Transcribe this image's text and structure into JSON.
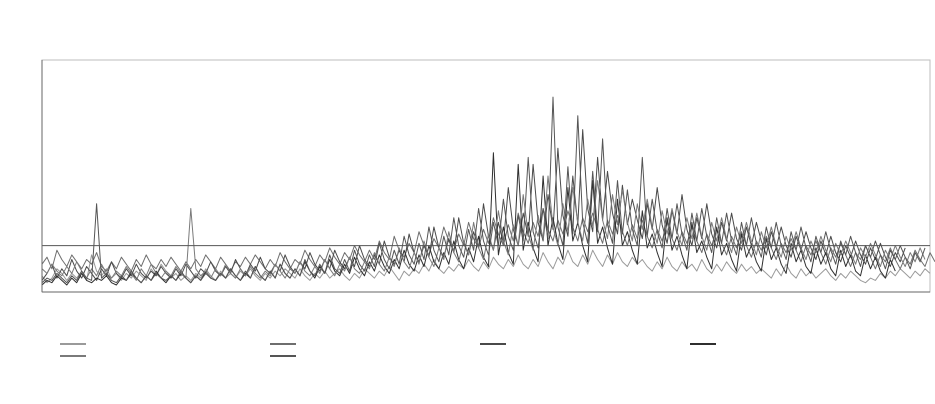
{
  "chart_data": {
    "type": "line",
    "title": "",
    "xlabel": "",
    "ylabel": "",
    "grid": true,
    "legend_position": "bottom",
    "x_count": 180,
    "ylim": [
      0,
      1
    ],
    "yticks": [],
    "xticks": [],
    "reference_line": 0.2,
    "series": [
      {
        "name": "",
        "color": "#9a9a9a",
        "values": [
          0.07,
          0.04,
          0.06,
          0.1,
          0.08,
          0.05,
          0.08,
          0.06,
          0.09,
          0.05,
          0.16,
          0.09,
          0.07,
          0.1,
          0.06,
          0.08,
          0.05,
          0.08,
          0.06,
          0.09,
          0.07,
          0.05,
          0.1,
          0.07,
          0.12,
          0.09,
          0.06,
          0.08,
          0.05,
          0.07,
          0.05,
          0.08,
          0.06,
          0.1,
          0.07,
          0.05,
          0.09,
          0.06,
          0.08,
          0.06,
          0.09,
          0.07,
          0.1,
          0.07,
          0.05,
          0.08,
          0.06,
          0.09,
          0.07,
          0.1,
          0.08,
          0.06,
          0.1,
          0.07,
          0.05,
          0.08,
          0.06,
          0.09,
          0.06,
          0.08,
          0.1,
          0.07,
          0.05,
          0.08,
          0.06,
          0.1,
          0.08,
          0.06,
          0.09,
          0.07,
          0.11,
          0.08,
          0.05,
          0.09,
          0.07,
          0.1,
          0.08,
          0.12,
          0.09,
          0.14,
          0.1,
          0.08,
          0.11,
          0.09,
          0.12,
          0.1,
          0.14,
          0.11,
          0.09,
          0.13,
          0.1,
          0.15,
          0.12,
          0.1,
          0.14,
          0.11,
          0.16,
          0.12,
          0.1,
          0.14,
          0.11,
          0.17,
          0.13,
          0.1,
          0.15,
          0.12,
          0.18,
          0.13,
          0.11,
          0.16,
          0.12,
          0.18,
          0.14,
          0.11,
          0.16,
          0.12,
          0.17,
          0.13,
          0.11,
          0.15,
          0.12,
          0.14,
          0.11,
          0.09,
          0.13,
          0.1,
          0.15,
          0.11,
          0.09,
          0.13,
          0.1,
          0.12,
          0.09,
          0.14,
          0.1,
          0.08,
          0.12,
          0.09,
          0.13,
          0.1,
          0.08,
          0.12,
          0.09,
          0.11,
          0.08,
          0.1,
          0.08,
          0.06,
          0.1,
          0.07,
          0.12,
          0.08,
          0.06,
          0.1,
          0.07,
          0.09,
          0.06,
          0.08,
          0.1,
          0.07,
          0.05,
          0.08,
          0.06,
          0.09,
          0.07,
          0.05,
          0.04,
          0.06,
          0.05,
          0.08,
          0.06,
          0.09,
          0.07,
          0.1,
          0.08,
          0.06,
          0.09,
          0.07,
          0.1,
          0.08
        ]
      },
      {
        "name": "",
        "color": "#6e6e6e",
        "values": [
          0.12,
          0.15,
          0.1,
          0.18,
          0.14,
          0.11,
          0.16,
          0.13,
          0.1,
          0.14,
          0.12,
          0.17,
          0.11,
          0.09,
          0.13,
          0.1,
          0.15,
          0.12,
          0.09,
          0.14,
          0.11,
          0.16,
          0.12,
          0.1,
          0.14,
          0.11,
          0.15,
          0.12,
          0.09,
          0.13,
          0.1,
          0.14,
          0.11,
          0.16,
          0.13,
          0.1,
          0.15,
          0.12,
          0.09,
          0.13,
          0.11,
          0.15,
          0.12,
          0.16,
          0.13,
          0.1,
          0.14,
          0.11,
          0.17,
          0.13,
          0.1,
          0.14,
          0.12,
          0.18,
          0.14,
          0.11,
          0.16,
          0.13,
          0.19,
          0.15,
          0.12,
          0.17,
          0.14,
          0.2,
          0.16,
          0.13,
          0.18,
          0.14,
          0.22,
          0.17,
          0.14,
          0.24,
          0.18,
          0.15,
          0.21,
          0.17,
          0.26,
          0.2,
          0.16,
          0.23,
          0.19,
          0.28,
          0.22,
          0.18,
          0.25,
          0.2,
          0.3,
          0.23,
          0.19,
          0.27,
          0.21,
          0.32,
          0.25,
          0.2,
          0.29,
          0.22,
          0.34,
          0.26,
          0.21,
          0.3,
          0.24,
          0.36,
          0.27,
          0.22,
          0.31,
          0.25,
          0.35,
          0.28,
          0.22,
          0.32,
          0.26,
          0.34,
          0.27,
          0.21,
          0.31,
          0.25,
          0.33,
          0.26,
          0.2,
          0.29,
          0.23,
          0.31,
          0.24,
          0.19,
          0.27,
          0.22,
          0.3,
          0.23,
          0.18,
          0.26,
          0.21,
          0.28,
          0.22,
          0.17,
          0.25,
          0.2,
          0.27,
          0.21,
          0.16,
          0.24,
          0.19,
          0.26,
          0.2,
          0.15,
          0.22,
          0.18,
          0.24,
          0.19,
          0.14,
          0.21,
          0.17,
          0.23,
          0.18,
          0.13,
          0.2,
          0.16,
          0.22,
          0.17,
          0.12,
          0.19,
          0.15,
          0.21,
          0.16,
          0.11,
          0.17,
          0.14,
          0.2,
          0.15,
          0.1,
          0.16,
          0.13,
          0.19,
          0.14,
          0.1,
          0.15,
          0.12,
          0.18,
          0.14,
          0.11,
          0.17,
          0.13
        ]
      },
      {
        "name": "",
        "color": "#4a4a4a",
        "values": [
          0.05,
          0.08,
          0.12,
          0.06,
          0.1,
          0.07,
          0.14,
          0.09,
          0.06,
          0.11,
          0.08,
          0.05,
          0.1,
          0.07,
          0.13,
          0.08,
          0.06,
          0.1,
          0.07,
          0.12,
          0.08,
          0.06,
          0.09,
          0.07,
          0.11,
          0.08,
          0.06,
          0.1,
          0.07,
          0.12,
          0.09,
          0.06,
          0.1,
          0.08,
          0.13,
          0.09,
          0.07,
          0.11,
          0.08,
          0.14,
          0.1,
          0.07,
          0.12,
          0.09,
          0.15,
          0.1,
          0.08,
          0.12,
          0.09,
          0.16,
          0.11,
          0.08,
          0.13,
          0.1,
          0.17,
          0.12,
          0.09,
          0.14,
          0.1,
          0.18,
          0.13,
          0.1,
          0.15,
          0.11,
          0.2,
          0.14,
          0.11,
          0.16,
          0.12,
          0.22,
          0.15,
          0.12,
          0.18,
          0.13,
          0.25,
          0.17,
          0.13,
          0.2,
          0.15,
          0.28,
          0.19,
          0.15,
          0.23,
          0.17,
          0.32,
          0.21,
          0.16,
          0.26,
          0.19,
          0.38,
          0.24,
          0.18,
          0.3,
          0.21,
          0.45,
          0.27,
          0.2,
          0.34,
          0.24,
          0.55,
          0.3,
          0.22,
          0.42,
          0.27,
          0.62,
          0.33,
          0.24,
          0.5,
          0.29,
          0.7,
          0.36,
          0.26,
          0.58,
          0.31,
          0.52,
          0.34,
          0.25,
          0.46,
          0.29,
          0.4,
          0.31,
          0.23,
          0.38,
          0.27,
          0.45,
          0.29,
          0.21,
          0.35,
          0.25,
          0.42,
          0.27,
          0.2,
          0.32,
          0.23,
          0.38,
          0.25,
          0.19,
          0.3,
          0.22,
          0.34,
          0.23,
          0.18,
          0.28,
          0.2,
          0.3,
          0.22,
          0.16,
          0.26,
          0.19,
          0.28,
          0.2,
          0.15,
          0.24,
          0.18,
          0.26,
          0.19,
          0.14,
          0.22,
          0.16,
          0.24,
          0.17,
          0.13,
          0.2,
          0.15,
          0.22,
          0.16,
          0.12,
          0.19,
          0.14,
          0.21,
          0.15,
          0.11,
          0.17,
          0.13,
          0.19
        ]
      },
      {
        "name": "",
        "color": "#2f2f2f",
        "values": [
          0.03,
          0.05,
          0.04,
          0.07,
          0.05,
          0.03,
          0.06,
          0.04,
          0.08,
          0.05,
          0.04,
          0.06,
          0.05,
          0.07,
          0.04,
          0.03,
          0.06,
          0.05,
          0.08,
          0.06,
          0.04,
          0.07,
          0.05,
          0.09,
          0.06,
          0.04,
          0.07,
          0.05,
          0.08,
          0.06,
          0.04,
          0.07,
          0.05,
          0.09,
          0.06,
          0.05,
          0.08,
          0.06,
          0.1,
          0.07,
          0.05,
          0.08,
          0.06,
          0.11,
          0.07,
          0.05,
          0.09,
          0.06,
          0.12,
          0.08,
          0.06,
          0.1,
          0.07,
          0.13,
          0.09,
          0.06,
          0.11,
          0.08,
          0.14,
          0.09,
          0.07,
          0.12,
          0.08,
          0.15,
          0.1,
          0.07,
          0.13,
          0.09,
          0.16,
          0.11,
          0.08,
          0.14,
          0.1,
          0.18,
          0.12,
          0.09,
          0.16,
          0.11,
          0.2,
          0.13,
          0.1,
          0.17,
          0.12,
          0.22,
          0.14,
          0.1,
          0.19,
          0.13,
          0.24,
          0.15,
          0.11,
          0.6,
          0.16,
          0.28,
          0.17,
          0.12,
          0.55,
          0.18,
          0.3,
          0.19,
          0.13,
          0.5,
          0.2,
          0.32,
          0.21,
          0.14,
          0.45,
          0.22,
          0.3,
          0.2,
          0.13,
          0.48,
          0.21,
          0.28,
          0.19,
          0.12,
          0.4,
          0.2,
          0.26,
          0.18,
          0.12,
          0.35,
          0.19,
          0.25,
          0.17,
          0.11,
          0.32,
          0.18,
          0.24,
          0.16,
          0.1,
          0.3,
          0.17,
          0.22,
          0.15,
          0.1,
          0.28,
          0.16,
          0.21,
          0.14,
          0.09,
          0.25,
          0.15,
          0.2,
          0.13,
          0.09,
          0.23,
          0.14,
          0.19,
          0.12,
          0.08,
          0.21,
          0.13,
          0.18,
          0.11,
          0.08,
          0.19,
          0.12,
          0.17,
          0.1,
          0.07,
          0.18,
          0.11,
          0.16,
          0.09,
          0.07,
          0.16,
          0.1,
          0.15,
          0.09,
          0.06,
          0.14,
          0.09
        ]
      },
      {
        "name": "",
        "color": "#7a7a7a",
        "values": [
          0.1,
          0.08,
          0.12,
          0.09,
          0.07,
          0.11,
          0.08,
          0.13,
          0.09,
          0.06,
          0.1,
          0.07,
          0.12,
          0.08,
          0.06,
          0.09,
          0.07,
          0.11,
          0.08,
          0.05,
          0.1,
          0.07,
          0.12,
          0.08,
          0.06,
          0.09,
          0.07,
          0.11,
          0.08,
          0.06,
          0.36,
          0.1,
          0.07,
          0.09,
          0.06,
          0.1,
          0.07,
          0.12,
          0.08,
          0.06,
          0.1,
          0.07,
          0.11,
          0.08,
          0.06,
          0.09,
          0.07,
          0.12,
          0.09,
          0.06,
          0.1,
          0.08,
          0.13,
          0.09,
          0.07,
          0.11,
          0.08,
          0.14,
          0.1,
          0.07,
          0.12,
          0.09,
          0.15,
          0.1,
          0.08,
          0.13,
          0.1,
          0.17,
          0.12,
          0.09,
          0.15,
          0.11,
          0.19,
          0.13,
          0.1,
          0.17,
          0.12,
          0.22,
          0.15,
          0.11,
          0.19,
          0.14,
          0.26,
          0.17,
          0.13,
          0.22,
          0.16,
          0.3,
          0.19,
          0.14,
          0.25,
          0.18,
          0.35,
          0.22,
          0.16,
          0.29,
          0.2,
          0.42,
          0.25,
          0.18,
          0.33,
          0.23,
          0.5,
          0.28,
          0.2,
          0.38,
          0.26,
          0.45,
          0.3,
          0.22,
          0.4,
          0.28,
          0.48,
          0.31,
          0.23,
          0.42,
          0.29,
          0.44,
          0.3,
          0.22,
          0.38,
          0.27,
          0.4,
          0.28,
          0.21,
          0.35,
          0.25,
          0.36,
          0.26,
          0.2,
          0.32,
          0.23,
          0.34,
          0.24,
          0.18,
          0.3,
          0.22,
          0.32,
          0.23,
          0.17,
          0.28,
          0.21,
          0.3,
          0.22,
          0.16,
          0.26,
          0.19,
          0.28,
          0.2,
          0.15,
          0.24,
          0.18,
          0.26,
          0.19,
          0.14,
          0.22,
          0.17,
          0.24,
          0.18,
          0.13,
          0.21,
          0.16,
          0.22,
          0.17,
          0.12,
          0.19,
          0.15,
          0.21,
          0.16,
          0.11,
          0.18,
          0.14,
          0.2,
          0.15,
          0.11,
          0.17,
          0.13,
          0.19,
          0.14
        ]
      },
      {
        "name": "",
        "color": "#555555",
        "values": [
          0.04,
          0.06,
          0.05,
          0.08,
          0.06,
          0.04,
          0.07,
          0.05,
          0.09,
          0.06,
          0.05,
          0.38,
          0.06,
          0.08,
          0.05,
          0.04,
          0.07,
          0.05,
          0.09,
          0.06,
          0.04,
          0.07,
          0.05,
          0.08,
          0.06,
          0.05,
          0.07,
          0.05,
          0.09,
          0.06,
          0.04,
          0.07,
          0.05,
          0.08,
          0.06,
          0.05,
          0.08,
          0.06,
          0.1,
          0.07,
          0.05,
          0.09,
          0.06,
          0.11,
          0.07,
          0.05,
          0.09,
          0.06,
          0.12,
          0.08,
          0.06,
          0.1,
          0.07,
          0.14,
          0.09,
          0.07,
          0.12,
          0.08,
          0.16,
          0.1,
          0.08,
          0.14,
          0.09,
          0.18,
          0.12,
          0.09,
          0.16,
          0.11,
          0.21,
          0.14,
          0.1,
          0.18,
          0.12,
          0.24,
          0.16,
          0.12,
          0.21,
          0.14,
          0.28,
          0.18,
          0.13,
          0.24,
          0.16,
          0.32,
          0.2,
          0.15,
          0.27,
          0.18,
          0.36,
          0.22,
          0.16,
          0.3,
          0.2,
          0.4,
          0.24,
          0.18,
          0.33,
          0.22,
          0.58,
          0.26,
          0.19,
          0.36,
          0.23,
          0.84,
          0.28,
          0.2,
          0.54,
          0.25,
          0.76,
          0.3,
          0.21,
          0.52,
          0.26,
          0.66,
          0.29,
          0.21,
          0.48,
          0.25,
          0.44,
          0.27,
          0.2,
          0.58,
          0.24,
          0.4,
          0.26,
          0.19,
          0.36,
          0.23,
          0.38,
          0.25,
          0.18,
          0.34,
          0.22,
          0.36,
          0.24,
          0.17,
          0.32,
          0.21,
          0.34,
          0.22,
          0.16,
          0.3,
          0.2,
          0.32,
          0.21,
          0.15,
          0.28,
          0.19,
          0.3,
          0.2,
          0.14,
          0.26,
          0.18,
          0.28,
          0.19,
          0.13,
          0.24,
          0.17,
          0.26,
          0.18,
          0.12,
          0.22,
          0.16,
          0.24,
          0.17,
          0.11,
          0.2,
          0.15,
          0.22,
          0.16,
          0.1,
          0.18,
          0.14,
          0.2,
          0.15,
          0.1,
          0.17,
          0.13,
          0.19
        ]
      }
    ]
  }
}
